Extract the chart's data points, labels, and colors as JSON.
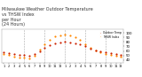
{
  "title": "Milwaukee Weather Outdoor Temperature\nvs THSW Index\nper Hour\n(24 Hours)",
  "title_fontsize": 3.5,
  "background_color": "#ffffff",
  "grid_color": "#aaaaaa",
  "xlim": [
    0.5,
    24.5
  ],
  "ylim": [
    33,
    108
  ],
  "yticks": [
    40,
    50,
    60,
    70,
    80,
    90,
    100
  ],
  "ytick_labels": [
    "40",
    "50",
    "60",
    "70",
    "80",
    "90",
    "100"
  ],
  "xticks": [
    1,
    2,
    3,
    4,
    5,
    6,
    7,
    8,
    9,
    10,
    11,
    12,
    13,
    14,
    15,
    16,
    17,
    18,
    19,
    20,
    21,
    22,
    23,
    24
  ],
  "xtick_labels": [
    "1",
    "2",
    "3",
    "4",
    "5",
    "6",
    "7",
    "8",
    "9",
    "10",
    "11",
    "12",
    "1",
    "2",
    "3",
    "4",
    "5",
    "6",
    "7",
    "8",
    "9",
    "10",
    "11",
    "12"
  ],
  "temp_hours": [
    1,
    2,
    3,
    4,
    5,
    6,
    7,
    8,
    9,
    10,
    11,
    12,
    13,
    14,
    15,
    16,
    17,
    18,
    19,
    20,
    21,
    22,
    23,
    24
  ],
  "temp_values": [
    58,
    56,
    54,
    52,
    51,
    50,
    54,
    60,
    66,
    72,
    76,
    78,
    80,
    79,
    77,
    74,
    70,
    65,
    62,
    60,
    57,
    55,
    53,
    51
  ],
  "thsw_hours": [
    1,
    2,
    3,
    4,
    5,
    6,
    7,
    8,
    9,
    10,
    11,
    12,
    13,
    14,
    15,
    16,
    17,
    18,
    19,
    20,
    21,
    22,
    23,
    24
  ],
  "thsw_values": [
    53,
    51,
    48,
    46,
    45,
    44,
    50,
    63,
    75,
    85,
    92,
    95,
    97,
    95,
    91,
    85,
    75,
    66,
    62,
    57,
    54,
    52,
    49,
    47
  ],
  "temp_color": "#cc2200",
  "thsw_color": "#ff8800",
  "dot_size": 2.5,
  "legend_temp": "Outdoor Temp",
  "legend_thsw": "THSW Index",
  "vgrid_positions": [
    5,
    9,
    13,
    17,
    21
  ]
}
